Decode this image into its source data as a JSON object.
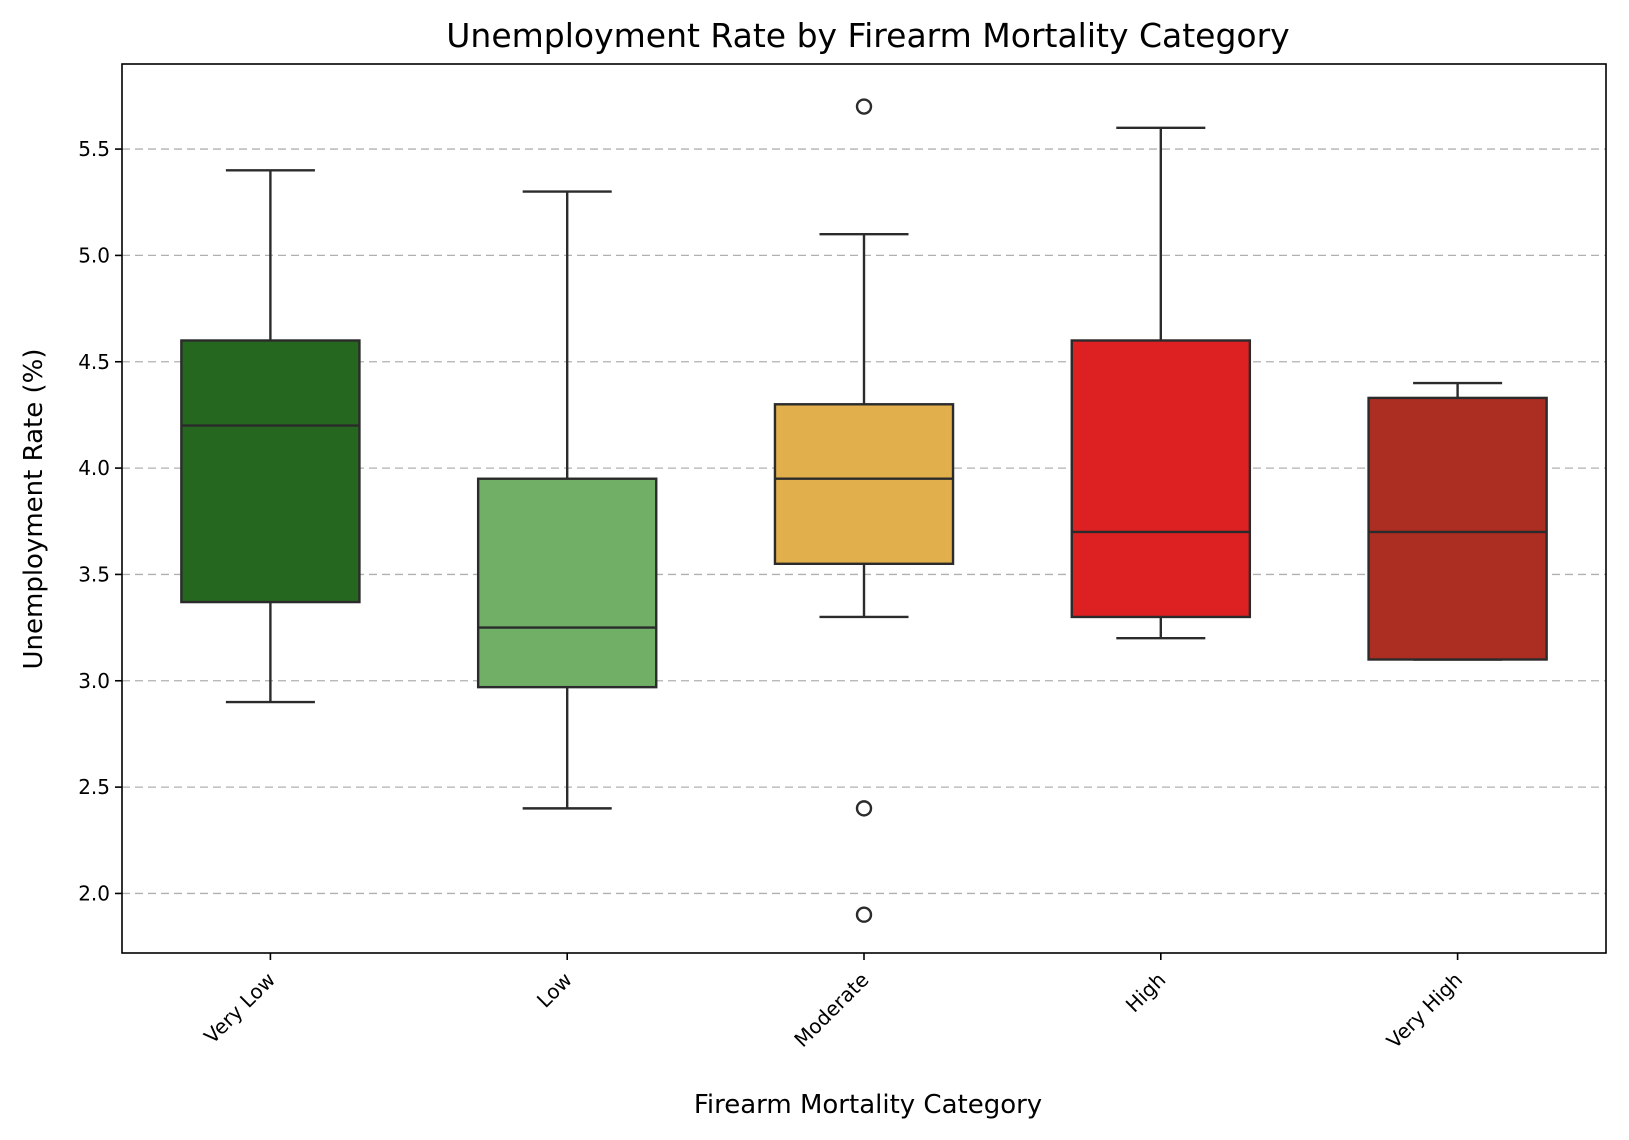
{
  "chart_data": {
    "type": "box",
    "title": "Unemployment Rate by Firearm Mortality Category",
    "xlabel": "Firearm Mortality Category",
    "ylabel": "Unemployment Rate (%)",
    "ylim": [
      1.72,
      5.9
    ],
    "yticks": [
      "2.0",
      "2.5",
      "3.0",
      "3.5",
      "4.0",
      "4.5",
      "5.0",
      "5.5"
    ],
    "grid": "y-dashed",
    "categories": [
      "Very Low",
      "Low",
      "Moderate",
      "High",
      "Very High"
    ],
    "boxes": [
      {
        "category": "Very Low",
        "whisker_low": 2.9,
        "q1": 3.37,
        "median": 4.2,
        "q3": 4.6,
        "whisker_high": 5.4,
        "outliers": [],
        "color": "#266720"
      },
      {
        "category": "Low",
        "whisker_low": 2.4,
        "q1": 2.97,
        "median": 3.25,
        "q3": 3.95,
        "whisker_high": 5.3,
        "outliers": [],
        "color": "#71af67"
      },
      {
        "category": "Moderate",
        "whisker_low": 3.3,
        "q1": 3.55,
        "median": 3.95,
        "q3": 4.3,
        "whisker_high": 5.1,
        "outliers": [
          5.7,
          2.4,
          1.9
        ],
        "color": "#e1af4c"
      },
      {
        "category": "High",
        "whisker_low": 3.2,
        "q1": 3.3,
        "median": 3.7,
        "q3": 4.6,
        "whisker_high": 5.6,
        "outliers": [],
        "color": "#dd2022"
      },
      {
        "category": "Very High",
        "whisker_low": 3.1,
        "q1": 3.1,
        "median": 3.7,
        "q3": 4.33,
        "whisker_high": 4.4,
        "outliers": [],
        "color": "#ac2d22"
      }
    ]
  }
}
